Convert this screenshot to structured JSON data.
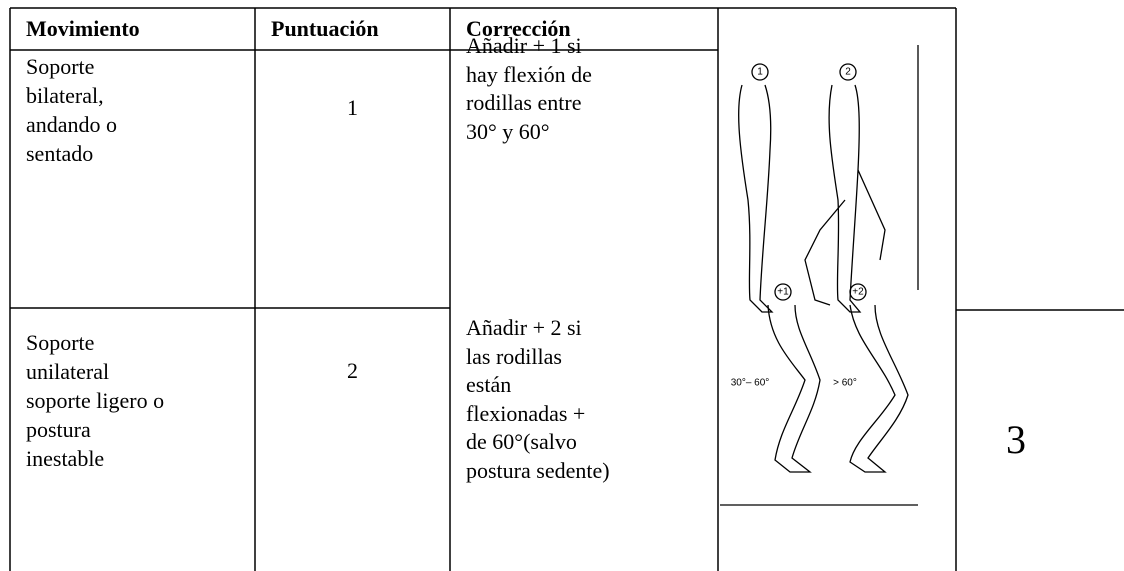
{
  "table": {
    "header": [
      "Movimiento",
      "Puntuación",
      "Corrección"
    ],
    "rows": [
      {
        "movimiento": [
          "Soporte",
          "bilateral,",
          "andando o",
          "sentado"
        ],
        "puntuacion": "1",
        "correccion": [
          "Añadir + 1 si",
          "hay flexión de",
          "rodillas entre",
          "30° y 60°"
        ]
      },
      {
        "movimiento": [
          "Soporte",
          "unilateral",
          "soporte ligero o",
          "postura",
          "inestable"
        ],
        "puntuacion": "2",
        "correccion": [
          "Añadir + 2 si",
          "las rodillas",
          "están",
          "flexionadas +",
          "de 60°(salvo",
          "postura sedente)"
        ]
      }
    ]
  },
  "figure": {
    "labels": [
      "1",
      "2",
      "+1",
      "+2",
      "30°– 60°",
      "> 60°"
    ]
  },
  "side_score": "3"
}
